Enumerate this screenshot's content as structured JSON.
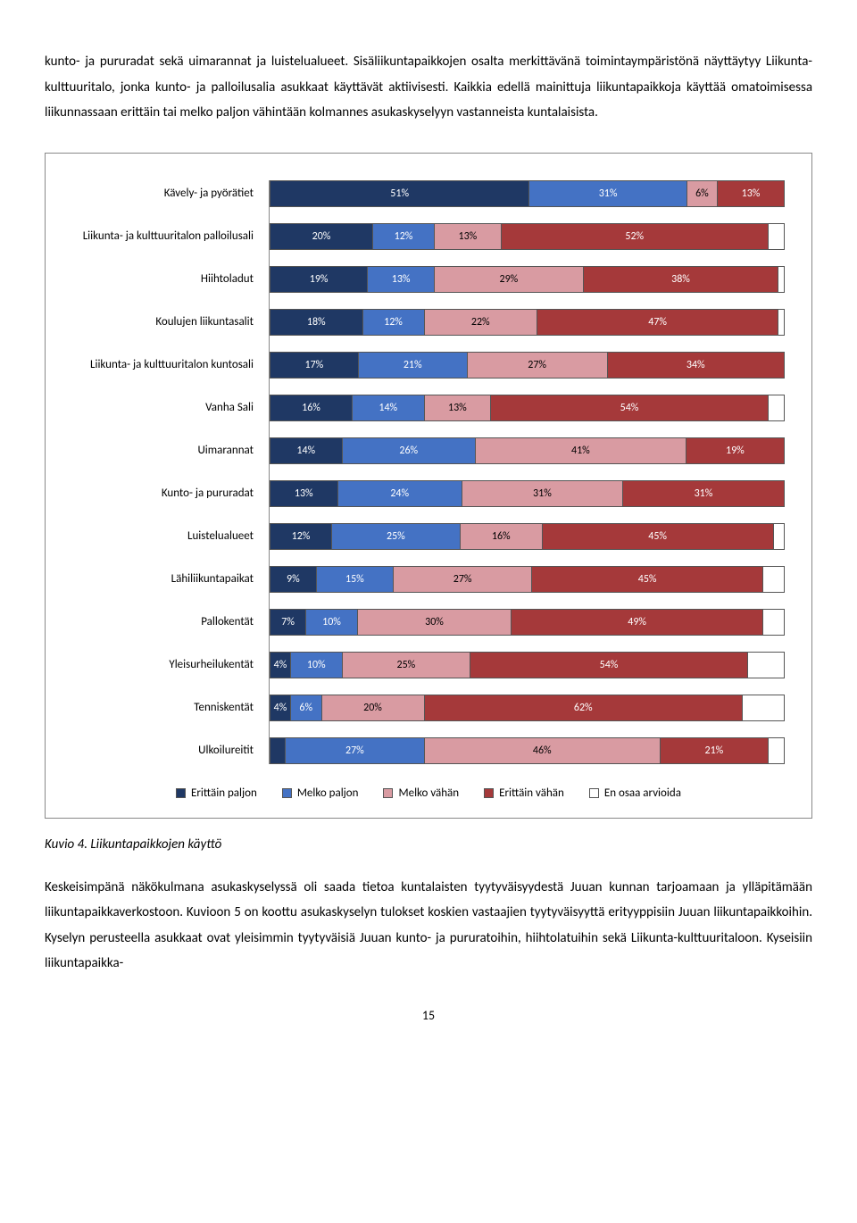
{
  "para1": "kunto- ja pururadat sekä uimarannat ja luistelualueet. Sisäliikuntapaikkojen osalta merkittävänä toimintaympäristönä näyttäytyy Liikunta-kulttuuritalo, jonka kunto- ja palloilusalia asukkaat käyttävät aktiivisesti. Kaikkia edellä mainittuja liikuntapaikkoja käyttää omatoimisessa liikunnassaan erittäin tai melko paljon vähintään kolmannes asukaskyselyyn vastanneista kuntalaisista.",
  "chart": {
    "colors": {
      "s1": "#1f3864",
      "s2": "#4472c4",
      "s3": "#d99ba2",
      "s4": "#a5393a",
      "s5": "#ffffff"
    },
    "rows": [
      {
        "label": "Kävely- ja pyörätiet",
        "segs": [
          {
            "v": 51,
            "t": "51%",
            "c": "s1"
          },
          {
            "v": 31,
            "t": "31%",
            "c": "s2"
          },
          {
            "v": 6,
            "t": "6%",
            "c": "s3",
            "lt": true
          },
          {
            "v": 13,
            "t": "13%",
            "c": "s4"
          }
        ]
      },
      {
        "label": "Liikunta- ja kulttuuritalon palloilusali",
        "segs": [
          {
            "v": 20,
            "t": "20%",
            "c": "s1"
          },
          {
            "v": 12,
            "t": "12%",
            "c": "s2"
          },
          {
            "v": 13,
            "t": "13%",
            "c": "s3",
            "lt": true
          },
          {
            "v": 52,
            "t": "52%",
            "c": "s4"
          },
          {
            "v": 3,
            "t": "",
            "c": "s5",
            "lt": true
          }
        ]
      },
      {
        "label": "Hiihtoladut",
        "segs": [
          {
            "v": 19,
            "t": "19%",
            "c": "s1"
          },
          {
            "v": 13,
            "t": "13%",
            "c": "s2"
          },
          {
            "v": 29,
            "t": "29%",
            "c": "s3",
            "lt": true
          },
          {
            "v": 38,
            "t": "38%",
            "c": "s4"
          },
          {
            "v": 1,
            "t": "",
            "c": "s5",
            "lt": true
          }
        ]
      },
      {
        "label": "Koulujen liikuntasalit",
        "segs": [
          {
            "v": 18,
            "t": "18%",
            "c": "s1"
          },
          {
            "v": 12,
            "t": "12%",
            "c": "s2"
          },
          {
            "v": 22,
            "t": "22%",
            "c": "s3",
            "lt": true
          },
          {
            "v": 47,
            "t": "47%",
            "c": "s4"
          },
          {
            "v": 1,
            "t": "",
            "c": "s5",
            "lt": true
          }
        ]
      },
      {
        "label": "Liikunta- ja kulttuuritalon kuntosali",
        "segs": [
          {
            "v": 17,
            "t": "17%",
            "c": "s1"
          },
          {
            "v": 21,
            "t": "21%",
            "c": "s2"
          },
          {
            "v": 27,
            "t": "27%",
            "c": "s3",
            "lt": true
          },
          {
            "v": 34,
            "t": "34%",
            "c": "s4"
          }
        ]
      },
      {
        "label": "Vanha Sali",
        "segs": [
          {
            "v": 16,
            "t": "16%",
            "c": "s1"
          },
          {
            "v": 14,
            "t": "14%",
            "c": "s2"
          },
          {
            "v": 13,
            "t": "13%",
            "c": "s3",
            "lt": true
          },
          {
            "v": 54,
            "t": "54%",
            "c": "s4"
          },
          {
            "v": 3,
            "t": "",
            "c": "s5",
            "lt": true
          }
        ]
      },
      {
        "label": "Uimarannat",
        "segs": [
          {
            "v": 14,
            "t": "14%",
            "c": "s1"
          },
          {
            "v": 26,
            "t": "26%",
            "c": "s2"
          },
          {
            "v": 41,
            "t": "41%",
            "c": "s3",
            "lt": true
          },
          {
            "v": 19,
            "t": "19%",
            "c": "s4"
          }
        ]
      },
      {
        "label": "Kunto- ja pururadat",
        "segs": [
          {
            "v": 13,
            "t": "13%",
            "c": "s1"
          },
          {
            "v": 24,
            "t": "24%",
            "c": "s2"
          },
          {
            "v": 31,
            "t": "31%",
            "c": "s3",
            "lt": true
          },
          {
            "v": 31,
            "t": "31%",
            "c": "s4"
          }
        ]
      },
      {
        "label": "Luistelualueet",
        "segs": [
          {
            "v": 12,
            "t": "12%",
            "c": "s1"
          },
          {
            "v": 25,
            "t": "25%",
            "c": "s2"
          },
          {
            "v": 16,
            "t": "16%",
            "c": "s3",
            "lt": true
          },
          {
            "v": 45,
            "t": "45%",
            "c": "s4"
          },
          {
            "v": 2,
            "t": "",
            "c": "s5",
            "lt": true
          }
        ]
      },
      {
        "label": "Lähiliikuntapaikat",
        "segs": [
          {
            "v": 9,
            "t": "9%",
            "c": "s1"
          },
          {
            "v": 15,
            "t": "15%",
            "c": "s2"
          },
          {
            "v": 27,
            "t": "27%",
            "c": "s3",
            "lt": true
          },
          {
            "v": 45,
            "t": "45%",
            "c": "s4"
          },
          {
            "v": 4,
            "t": "",
            "c": "s5",
            "lt": true
          }
        ]
      },
      {
        "label": "Pallokentät",
        "segs": [
          {
            "v": 7,
            "t": "7%",
            "c": "s1"
          },
          {
            "v": 10,
            "t": "10%",
            "c": "s2"
          },
          {
            "v": 30,
            "t": "30%",
            "c": "s3",
            "lt": true
          },
          {
            "v": 49,
            "t": "49%",
            "c": "s4"
          },
          {
            "v": 4,
            "t": "",
            "c": "s5",
            "lt": true
          }
        ]
      },
      {
        "label": "Yleisurheilukentät",
        "segs": [
          {
            "v": 4,
            "t": "4%",
            "c": "s1"
          },
          {
            "v": 10,
            "t": "10%",
            "c": "s2"
          },
          {
            "v": 25,
            "t": "25%",
            "c": "s3",
            "lt": true
          },
          {
            "v": 54,
            "t": "54%",
            "c": "s4"
          },
          {
            "v": 7,
            "t": "",
            "c": "s5",
            "lt": true
          }
        ]
      },
      {
        "label": "Tenniskentät",
        "segs": [
          {
            "v": 4,
            "t": "4%",
            "c": "s1"
          },
          {
            "v": 6,
            "t": "6%",
            "c": "s2"
          },
          {
            "v": 20,
            "t": "20%",
            "c": "s3",
            "lt": true
          },
          {
            "v": 62,
            "t": "62%",
            "c": "s4"
          },
          {
            "v": 8,
            "t": "",
            "c": "s5",
            "lt": true
          }
        ]
      },
      {
        "label": "Ulkoilureitit",
        "segs": [
          {
            "v": 3,
            "t": "",
            "c": "s1"
          },
          {
            "v": 27,
            "t": "27%",
            "c": "s2"
          },
          {
            "v": 46,
            "t": "46%",
            "c": "s3",
            "lt": true
          },
          {
            "v": 21,
            "t": "21%",
            "c": "s4"
          },
          {
            "v": 3,
            "t": "",
            "c": "s5",
            "lt": true
          }
        ]
      }
    ],
    "legend": [
      {
        "label": "Erittäin paljon",
        "c": "s1"
      },
      {
        "label": "Melko paljon",
        "c": "s2"
      },
      {
        "label": "Melko vähän",
        "c": "s3"
      },
      {
        "label": "Erittäin vähän",
        "c": "s4"
      },
      {
        "label": "En osaa arvioida",
        "c": "s5"
      }
    ]
  },
  "caption": "Kuvio 4. Liikuntapaikkojen käyttö",
  "para2": "Keskeisimpänä näkökulmana asukaskyselyssä oli saada tietoa kuntalaisten tyytyväisyydestä Juuan kunnan tarjoamaan ja ylläpitämään liikuntapaikkaverkostoon. Kuvioon 5 on koottu asukaskyselyn tulokset koskien vastaajien tyytyväisyyttä erityyppisiin Juuan liikuntapaikkoihin. Kyselyn perusteella asukkaat ovat yleisimmin tyytyväisiä Juuan kunto- ja pururatoihin, hiihtolatuihin sekä Liikunta-kulttuuritaloon. Kyseisiin liikuntapaikka-",
  "pageNum": "15"
}
